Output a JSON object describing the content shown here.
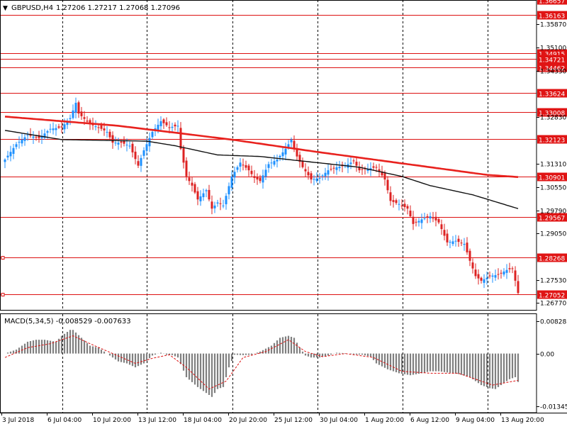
{
  "header": {
    "symbol": "GBPUSD,H4",
    "ohlc": "1.27206 1.27217 1.27068 1.27096"
  },
  "indicator": {
    "label": "MACD(5,34,5) -0.008529 -0.007633"
  },
  "colors": {
    "bull": "#1E90FF",
    "bear": "#DD2222",
    "ma_slow": "#E8221E",
    "ma_fast": "#111111",
    "level": "#DD1111",
    "hist": "#808080",
    "signal": "#DD1111",
    "grid": "#000000",
    "bg": "#ffffff"
  },
  "chart_data": [
    {
      "type": "candlestick",
      "title": "",
      "y_ticks": [
        "1.35870",
        "1.35100",
        "1.34330",
        "1.32830",
        "1.31310",
        "1.30550",
        "1.29790",
        "1.29050",
        "1.27530",
        "1.26770"
      ],
      "ylim": [
        1.2655,
        1.3665
      ],
      "x_ticks": [
        "3 Jul 2018",
        "6 Jul 04:00",
        "10 Jul 20:00",
        "13 Jul 12:00",
        "18 Jul 04:00",
        "20 Jul 20:00",
        "25 Jul 12:00",
        "30 Jul 04:00",
        "1 Aug 20:00",
        "6 Aug 12:00",
        "9 Aug 04:00",
        "13 Aug 20:00"
      ],
      "levels": [
        "1.36657",
        "1.36163",
        "1.34915",
        "1.34721",
        "1.34462",
        "1.33624",
        "1.33008",
        "1.32123",
        "1.30901",
        "1.29567",
        "1.28268",
        "1.27052"
      ],
      "candle_anchors": [
        [
          0,
          1.3145
        ],
        [
          4,
          1.3195
        ],
        [
          8,
          1.3225
        ],
        [
          12,
          1.3215
        ],
        [
          16,
          1.3245
        ],
        [
          20,
          1.325
        ],
        [
          23,
          1.328
        ],
        [
          25,
          1.333
        ],
        [
          26,
          1.3295
        ],
        [
          30,
          1.326
        ],
        [
          33,
          1.325
        ],
        [
          36,
          1.3235
        ],
        [
          38,
          1.32
        ],
        [
          41,
          1.32
        ],
        [
          44,
          1.319
        ],
        [
          47,
          1.3125
        ],
        [
          49,
          1.3175
        ],
        [
          52,
          1.3235
        ],
        [
          55,
          1.327
        ],
        [
          58,
          1.325
        ],
        [
          61,
          1.3255
        ],
        [
          62,
          1.318
        ],
        [
          64,
          1.309
        ],
        [
          66,
          1.306
        ],
        [
          68,
          1.3015
        ],
        [
          71,
          1.3045
        ],
        [
          73,
          1.2985
        ],
        [
          75,
          1.3005
        ],
        [
          77,
          1.2995
        ],
        [
          80,
          1.309
        ],
        [
          83,
          1.3135
        ],
        [
          86,
          1.311
        ],
        [
          88,
          1.3085
        ],
        [
          90,
          1.3075
        ],
        [
          93,
          1.313
        ],
        [
          96,
          1.3145
        ],
        [
          99,
          1.318
        ],
        [
          101,
          1.321
        ],
        [
          103,
          1.3155
        ],
        [
          105,
          1.312
        ],
        [
          108,
          1.308
        ],
        [
          111,
          1.3085
        ],
        [
          114,
          1.311
        ],
        [
          117,
          1.312
        ],
        [
          120,
          1.3125
        ],
        [
          123,
          1.314
        ],
        [
          125,
          1.311
        ],
        [
          128,
          1.3115
        ],
        [
          131,
          1.312
        ],
        [
          134,
          1.308
        ],
        [
          136,
          1.301
        ],
        [
          139,
          1.3
        ],
        [
          142,
          1.2985
        ],
        [
          144,
          1.2935
        ],
        [
          147,
          1.295
        ],
        [
          150,
          1.296
        ],
        [
          153,
          1.294
        ],
        [
          156,
          1.2875
        ],
        [
          159,
          1.288
        ],
        [
          162,
          1.287
        ],
        [
          164,
          1.2815
        ],
        [
          166,
          1.2765
        ],
        [
          168,
          1.275
        ],
        [
          171,
          1.2765
        ],
        [
          174,
          1.277
        ],
        [
          177,
          1.2785
        ],
        [
          179,
          1.279
        ],
        [
          181,
          1.271
        ]
      ],
      "ma_slow_values": [
        [
          0,
          1.3285
        ],
        [
          40,
          1.3255
        ],
        [
          80,
          1.321
        ],
        [
          110,
          1.317
        ],
        [
          130,
          1.3145
        ],
        [
          150,
          1.312
        ],
        [
          170,
          1.3095
        ],
        [
          181,
          1.3088
        ]
      ],
      "ma_fast_values": [
        [
          0,
          1.324
        ],
        [
          20,
          1.321
        ],
        [
          50,
          1.3205
        ],
        [
          60,
          1.319
        ],
        [
          75,
          1.316
        ],
        [
          90,
          1.3155
        ],
        [
          105,
          1.314
        ],
        [
          125,
          1.312
        ],
        [
          140,
          1.309
        ],
        [
          150,
          1.306
        ],
        [
          165,
          1.303
        ],
        [
          181,
          1.2985
        ]
      ]
    },
    {
      "type": "bar",
      "title": "MACD(5,34,5)",
      "y_ticks": [
        "0.008285",
        "0.00",
        "-0.013451"
      ],
      "ylim": [
        -0.015,
        0.01
      ],
      "hist_anchors": [
        [
          0,
          0.0
        ],
        [
          4,
          0.001
        ],
        [
          8,
          0.003
        ],
        [
          11,
          0.0035
        ],
        [
          14,
          0.0035
        ],
        [
          18,
          0.003
        ],
        [
          20,
          0.0045
        ],
        [
          23,
          0.006
        ],
        [
          24,
          0.006
        ],
        [
          27,
          0.004
        ],
        [
          30,
          0.002
        ],
        [
          33,
          0.0015
        ],
        [
          37,
          -0.0005
        ],
        [
          40,
          -0.002
        ],
        [
          43,
          -0.0025
        ],
        [
          46,
          -0.0035
        ],
        [
          49,
          -0.0025
        ],
        [
          52,
          -0.0005
        ],
        [
          55,
          0.0002
        ],
        [
          57,
          -0.0003
        ],
        [
          59,
          -0.0004
        ],
        [
          61,
          -0.001
        ],
        [
          64,
          -0.006
        ],
        [
          68,
          -0.0085
        ],
        [
          71,
          -0.01
        ],
        [
          73,
          -0.011
        ],
        [
          75,
          -0.009
        ],
        [
          77,
          -0.0085
        ],
        [
          79,
          -0.0035
        ],
        [
          81,
          -0.0003
        ],
        [
          84,
          -0.0004
        ],
        [
          87,
          -0.0003
        ],
        [
          90,
          0.0005
        ],
        [
          94,
          0.002
        ],
        [
          97,
          0.004
        ],
        [
          100,
          0.0045
        ],
        [
          102,
          0.004
        ],
        [
          104,
          0.0015
        ],
        [
          106,
          -0.0005
        ],
        [
          108,
          -0.001
        ],
        [
          111,
          -0.001
        ],
        [
          114,
          -0.0005
        ],
        [
          117,
          0.0002
        ],
        [
          120,
          0.0001
        ],
        [
          123,
          -0.0002
        ],
        [
          126,
          -0.0003
        ],
        [
          129,
          -0.0008
        ],
        [
          131,
          -0.0025
        ],
        [
          135,
          -0.004
        ],
        [
          139,
          -0.005
        ],
        [
          143,
          -0.0055
        ],
        [
          147,
          -0.005
        ],
        [
          150,
          -0.0045
        ],
        [
          153,
          -0.0045
        ],
        [
          156,
          -0.0048
        ],
        [
          160,
          -0.0052
        ],
        [
          164,
          -0.006
        ],
        [
          168,
          -0.008
        ],
        [
          171,
          -0.0088
        ],
        [
          173,
          -0.009
        ],
        [
          176,
          -0.0075
        ],
        [
          178,
          -0.0065
        ],
        [
          180,
          -0.006
        ],
        [
          181,
          -0.0072
        ]
      ],
      "signal_anchors": [
        [
          0,
          -0.001
        ],
        [
          8,
          0.0015
        ],
        [
          16,
          0.0025
        ],
        [
          24,
          0.0045
        ],
        [
          30,
          0.0025
        ],
        [
          38,
          0.0
        ],
        [
          46,
          -0.0025
        ],
        [
          52,
          -0.0012
        ],
        [
          58,
          -0.0003
        ],
        [
          64,
          -0.0035
        ],
        [
          72,
          -0.009
        ],
        [
          78,
          -0.007
        ],
        [
          84,
          -0.001
        ],
        [
          92,
          0.0005
        ],
        [
          100,
          0.0035
        ],
        [
          106,
          0.0005
        ],
        [
          112,
          -0.0008
        ],
        [
          120,
          0.0
        ],
        [
          130,
          -0.001
        ],
        [
          140,
          -0.0045
        ],
        [
          150,
          -0.005
        ],
        [
          160,
          -0.005
        ],
        [
          172,
          -0.008
        ],
        [
          181,
          -0.0068
        ]
      ]
    }
  ]
}
